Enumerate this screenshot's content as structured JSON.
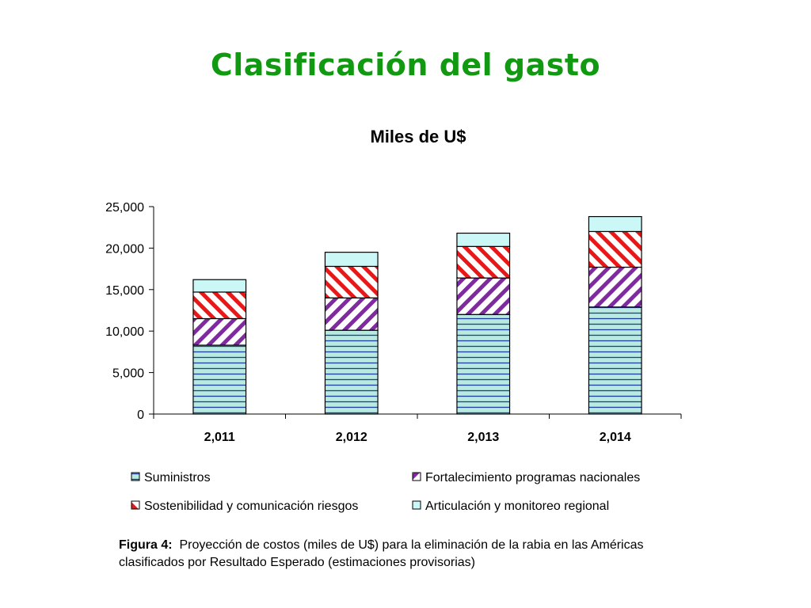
{
  "slide": {
    "title": "Clasificación del gasto"
  },
  "chart_data": {
    "type": "bar",
    "stacked": true,
    "title": "Miles de U$",
    "xlabel": "",
    "ylabel": "",
    "categories": [
      "2,011",
      "2,012",
      "2,013",
      "2,014"
    ],
    "ylim": [
      0,
      25000
    ],
    "yticks": [
      0,
      5000,
      10000,
      15000,
      20000,
      25000
    ],
    "ytick_labels": [
      "0",
      "5,000",
      "10,000",
      "15,000",
      "20,000",
      "25,000"
    ],
    "grid": false,
    "legend_position": "bottom",
    "series": [
      {
        "name": "Suministros",
        "values": [
          8300,
          10100,
          12000,
          12900
        ],
        "color": "#b9eae0",
        "pattern": "horizontal-lines",
        "pattern_color": "#1f3f9f"
      },
      {
        "name": "Fortalecimiento programas nacionales",
        "values": [
          3200,
          3900,
          4400,
          4800
        ],
        "color": "#ffffff",
        "pattern": "diagonal-stripes",
        "pattern_color": "#7f2a9f"
      },
      {
        "name": "Sostenibilidad y comunicación riesgos",
        "values": [
          3200,
          3800,
          3800,
          4300
        ],
        "color": "#ffffff",
        "pattern": "diagonal-stripes-reverse",
        "pattern_color": "#e81818"
      },
      {
        "name": "Articulación y monitoreo regional",
        "values": [
          1500,
          1700,
          1600,
          1800
        ],
        "color": "#ccf7f7",
        "pattern": "solid",
        "pattern_color": "#ccf7f7"
      }
    ]
  },
  "caption": {
    "label": "Figura 4:",
    "text": "Proyección de costos (miles de U$)  para la eliminación de la rabia en las Américas clasificados por Resultado Esperado (estimaciones provisorias)"
  }
}
